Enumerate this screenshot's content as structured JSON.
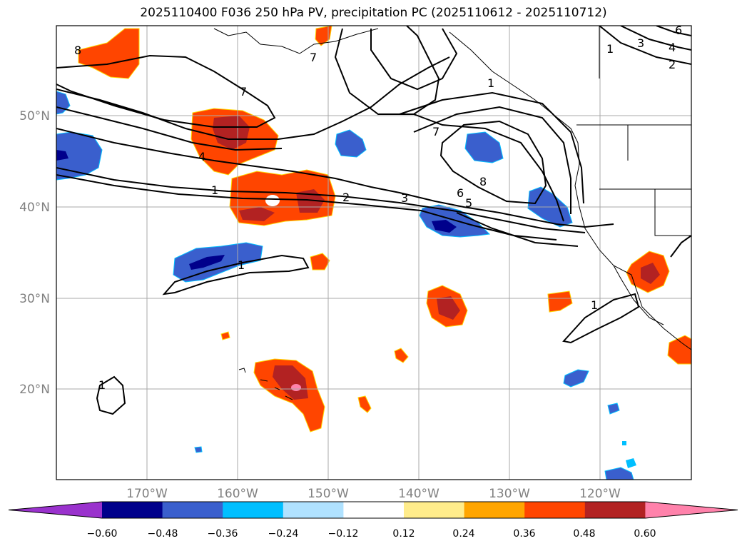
{
  "title": "2025110400 F036 250 hPa PV, precipitation PC (2025110612 - 2025110712)",
  "longitude_labels": [
    "170°W",
    "160°W",
    "150°W",
    "140°W",
    "130°W",
    "120°W"
  ],
  "latitude_labels": [
    "50°N",
    "40°N",
    "30°N",
    "20°N"
  ],
  "colorbar": {
    "ticks": [
      "−0.60",
      "−0.48",
      "−0.36",
      "−0.24",
      "−0.12",
      "0.12",
      "0.24",
      "0.36",
      "0.48",
      "0.60"
    ],
    "colors": [
      "#9a32cd",
      "#00008b",
      "#3a5fcd",
      "#00bfff",
      "#b0e2ff",
      "#ffffff",
      "#ffec8b",
      "#ffa500",
      "#ff4500",
      "#b22222",
      "#ff82ab"
    ]
  },
  "contour_labels": [
    "8",
    "7",
    "7",
    "4",
    "1",
    "2",
    "3",
    "7",
    "8",
    "6",
    "5",
    "1",
    "1",
    "3",
    "4",
    "2",
    "6",
    "1",
    "1",
    "1"
  ],
  "colors": {
    "contour": "#000000",
    "gridline": "#a9a9a9",
    "coastline": "#000000",
    "tick_label": "#808080"
  }
}
